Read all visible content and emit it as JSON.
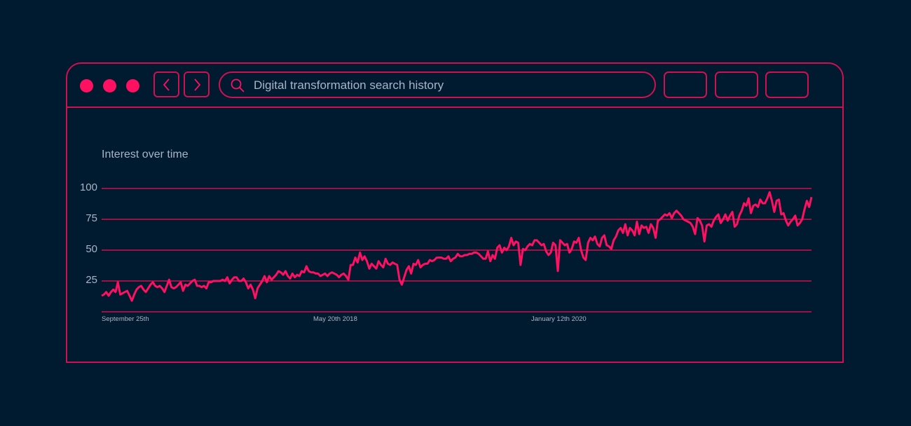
{
  "window": {
    "traffic_lights": [
      "close",
      "minimize",
      "maximize"
    ],
    "nav": {
      "back_icon": "chevron-left-icon",
      "forward_icon": "chevron-right-icon"
    },
    "search": {
      "icon": "search-icon",
      "value": "Digital transformation search history"
    },
    "toolbar_buttons": [
      "",
      "",
      ""
    ]
  },
  "colors": {
    "background": "#001a30",
    "accent": "#ff1060",
    "border": "#d0104f",
    "text": "#a9b5c6"
  },
  "chart_data": {
    "type": "line",
    "title": "Interest over time",
    "xlabel": "",
    "ylabel": "",
    "ylim": [
      0,
      100
    ],
    "yticks": [
      "100",
      "75",
      "50",
      "25"
    ],
    "xtick_labels": [
      "September 25th",
      "May 20th 2018",
      "January 12th 2020"
    ],
    "grid": true,
    "series": [
      {
        "name": "Digital transformation",
        "values": [
          13,
          14,
          16,
          13,
          16,
          18,
          16,
          24,
          14,
          15,
          16,
          17,
          13,
          9,
          14,
          18,
          20,
          21,
          18,
          16,
          19,
          22,
          24,
          21,
          20,
          21,
          19,
          16,
          21,
          26,
          20,
          19,
          20,
          22,
          24,
          17,
          22,
          21,
          23,
          25,
          26,
          21,
          21,
          20,
          21,
          19,
          24,
          24,
          25,
          25,
          25,
          25,
          26,
          25,
          28,
          23,
          26,
          28,
          28,
          25,
          25,
          27,
          24,
          19,
          22,
          18,
          11,
          19,
          22,
          25,
          29,
          24,
          29,
          26,
          28,
          30,
          33,
          32,
          30,
          33,
          29,
          27,
          31,
          28,
          30,
          29,
          33,
          32,
          37,
          33,
          32,
          32,
          31,
          31,
          29,
          30,
          31,
          29,
          31,
          32,
          31,
          30,
          28,
          30,
          31,
          29,
          26,
          38,
          38,
          44,
          40,
          48,
          42,
          45,
          41,
          35,
          39,
          37,
          35,
          41,
          38,
          36,
          43,
          39,
          38,
          40,
          39,
          38,
          26,
          22,
          28,
          34,
          37,
          31,
          39,
          38,
          42,
          36,
          38,
          39,
          39,
          42,
          41,
          42,
          44,
          44,
          44,
          43,
          43,
          45,
          41,
          43,
          44,
          47,
          45,
          45,
          46,
          46,
          47,
          47,
          48,
          48,
          47,
          45,
          43,
          43,
          49,
          41,
          46,
          43,
          52,
          54,
          48,
          52,
          50,
          53,
          60,
          54,
          57,
          56,
          38,
          51,
          50,
          53,
          55,
          54,
          58,
          58,
          56,
          54,
          55,
          49,
          46,
          48,
          56,
          54,
          33,
          58,
          56,
          54,
          55,
          48,
          51,
          57,
          56,
          60,
          50,
          44,
          42,
          56,
          60,
          58,
          61,
          55,
          53,
          60,
          62,
          54,
          53,
          51,
          58,
          61,
          66,
          68,
          64,
          71,
          62,
          68,
          66,
          62,
          73,
          63,
          70,
          68,
          69,
          64,
          71,
          68,
          60,
          74,
          75,
          77,
          79,
          78,
          80,
          76,
          80,
          82,
          80,
          78,
          75,
          74,
          73,
          72,
          69,
          63,
          76,
          74,
          70,
          57,
          70,
          71,
          69,
          74,
          77,
          79,
          72,
          75,
          79,
          74,
          78,
          81,
          69,
          71,
          78,
          82,
          88,
          86,
          92,
          80,
          86,
          87,
          85,
          91,
          88,
          88,
          92,
          97,
          90,
          81,
          90,
          91,
          79,
          80,
          74,
          70,
          73,
          75,
          78,
          70,
          72,
          75,
          83,
          90,
          85,
          93
        ]
      }
    ]
  }
}
